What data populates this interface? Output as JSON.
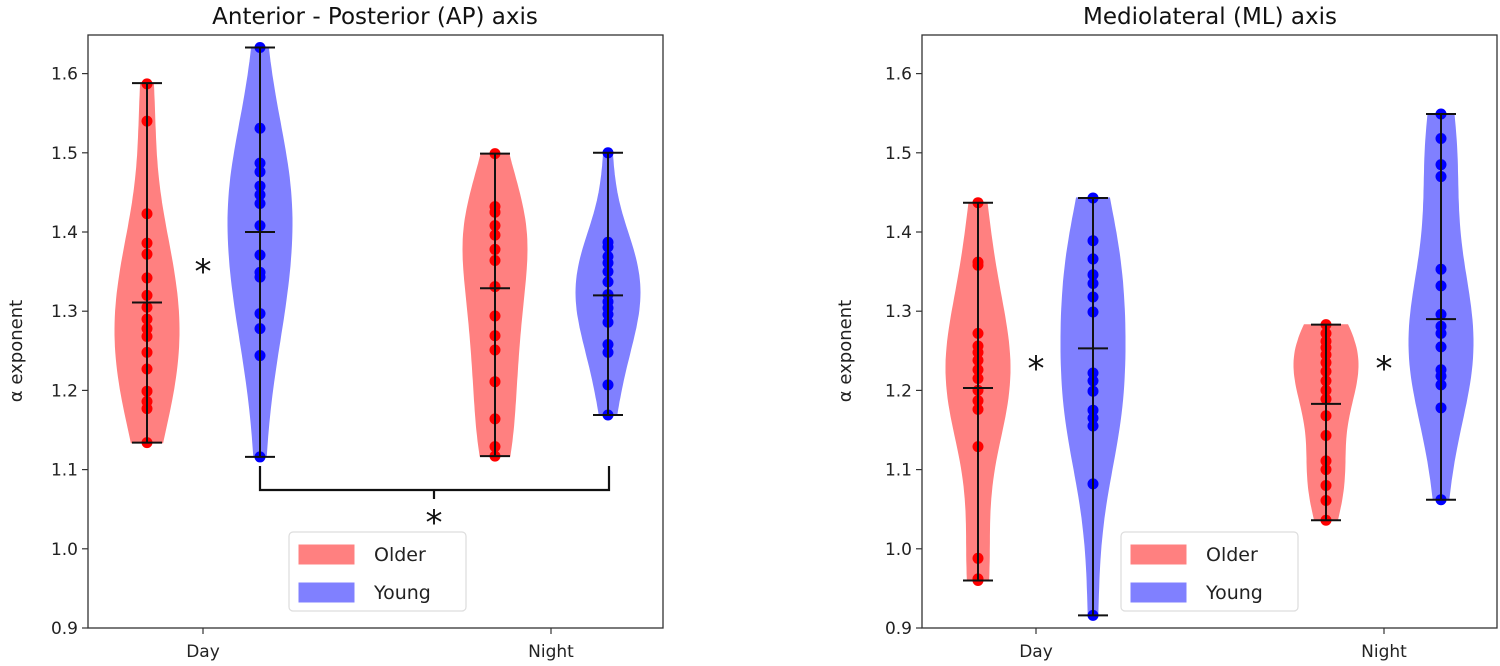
{
  "colors": {
    "older": "#ff0000",
    "young": "#0000ff",
    "older_fill": "#ff8080",
    "young_fill": "#8080ff"
  },
  "chart_data": [
    {
      "type": "violin",
      "title": "Anterior - Posterior (AP) axis",
      "xlabel": "",
      "ylabel": "α exponent",
      "ylim": [
        0.9,
        1.65
      ],
      "yticks": [
        "0.9",
        "1.0",
        "1.1",
        "1.2",
        "1.3",
        "1.4",
        "1.5",
        "1.6"
      ],
      "yticks_values": [
        0.9,
        1.0,
        1.1,
        1.2,
        1.3,
        1.4,
        1.5,
        1.6
      ],
      "categories": [
        "Day",
        "Night"
      ],
      "legend": {
        "position": "lower-center",
        "entries": [
          "Older",
          "Young"
        ]
      },
      "series": [
        {
          "name": "Older",
          "groups": [
            {
              "category": "Day",
              "min": 1.134,
              "max": 1.588,
              "median": 1.311,
              "points": [
                1.587,
                1.54,
                1.423,
                1.386,
                1.372,
                1.342,
                1.32,
                1.305,
                1.29,
                1.278,
                1.268,
                1.248,
                1.227,
                1.199,
                1.186,
                1.177,
                1.134
              ]
            },
            {
              "category": "Night",
              "min": 1.117,
              "max": 1.499,
              "median": 1.329,
              "points": [
                1.499,
                1.432,
                1.425,
                1.408,
                1.396,
                1.378,
                1.364,
                1.331,
                1.294,
                1.269,
                1.251,
                1.211,
                1.164,
                1.129,
                1.117
              ]
            }
          ]
        },
        {
          "name": "Young",
          "groups": [
            {
              "category": "Day",
              "min": 1.116,
              "max": 1.633,
              "median": 1.4,
              "points": [
                1.633,
                1.531,
                1.487,
                1.476,
                1.458,
                1.447,
                1.436,
                1.408,
                1.371,
                1.349,
                1.343,
                1.297,
                1.278,
                1.244,
                1.116
              ]
            },
            {
              "category": "Night",
              "min": 1.169,
              "max": 1.5,
              "median": 1.32,
              "points": [
                1.5,
                1.387,
                1.381,
                1.369,
                1.361,
                1.35,
                1.337,
                1.321,
                1.312,
                1.304,
                1.296,
                1.286,
                1.258,
                1.248,
                1.207,
                1.169
              ]
            }
          ]
        }
      ],
      "annotations": [
        {
          "text": "*",
          "between": "Older Day vs Young Day"
        },
        {
          "text": "*",
          "between": "Young Day vs Young Night",
          "bracket": true
        }
      ]
    },
    {
      "type": "violin",
      "title": "Mediolateral (ML) axis",
      "xlabel": "",
      "ylabel": "α exponent",
      "ylim": [
        0.9,
        1.65
      ],
      "yticks": [
        "0.9",
        "1.0",
        "1.1",
        "1.2",
        "1.3",
        "1.4",
        "1.5",
        "1.6"
      ],
      "yticks_values": [
        0.9,
        1.0,
        1.1,
        1.2,
        1.3,
        1.4,
        1.5,
        1.6
      ],
      "categories": [
        "Day",
        "Night"
      ],
      "legend": {
        "position": "lower-center",
        "entries": [
          "Older",
          "Young"
        ]
      },
      "series": [
        {
          "name": "Older",
          "groups": [
            {
              "category": "Day",
              "min": 0.96,
              "max": 1.437,
              "median": 1.203,
              "points": [
                1.437,
                1.362,
                1.358,
                1.272,
                1.256,
                1.248,
                1.238,
                1.226,
                1.215,
                1.2,
                1.187,
                1.176,
                1.129,
                0.988,
                0.962,
                0.96
              ]
            },
            {
              "category": "Night",
              "min": 1.036,
              "max": 1.283,
              "median": 1.183,
              "points": [
                1.283,
                1.272,
                1.262,
                1.254,
                1.245,
                1.235,
                1.224,
                1.212,
                1.2,
                1.189,
                1.168,
                1.143,
                1.111,
                1.1,
                1.08,
                1.061,
                1.036
              ]
            }
          ]
        },
        {
          "name": "Young",
          "groups": [
            {
              "category": "Day",
              "min": 0.916,
              "max": 1.443,
              "median": 1.253,
              "points": [
                1.443,
                1.389,
                1.366,
                1.346,
                1.335,
                1.318,
                1.299,
                1.222,
                1.212,
                1.199,
                1.175,
                1.165,
                1.155,
                1.082,
                0.916
              ]
            },
            {
              "category": "Night",
              "min": 1.062,
              "max": 1.549,
              "median": 1.29,
              "points": [
                1.549,
                1.518,
                1.485,
                1.47,
                1.353,
                1.332,
                1.296,
                1.281,
                1.272,
                1.255,
                1.226,
                1.218,
                1.207,
                1.178,
                1.062
              ]
            }
          ]
        }
      ],
      "annotations": [
        {
          "text": "*",
          "between": "Older Day vs Young Day"
        },
        {
          "text": "*",
          "between": "Older Night vs Young Night"
        }
      ]
    }
  ]
}
